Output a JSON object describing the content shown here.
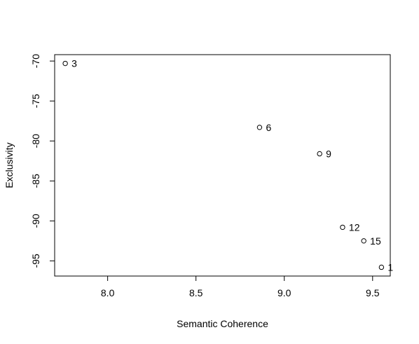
{
  "chart_data": {
    "type": "scatter",
    "title": "",
    "xlabel": "Semantic Coherence",
    "ylabel": "Exclusivity",
    "xlim": [
      7.7,
      9.6
    ],
    "ylim": [
      -96.9,
      -69.2
    ],
    "xticks": [
      8.0,
      8.5,
      9.0,
      9.5
    ],
    "xtick_labels": [
      "8.0",
      "8.5",
      "9.0",
      "9.5"
    ],
    "yticks": [
      -70,
      -75,
      -80,
      -85,
      -90,
      -95
    ],
    "ytick_labels": [
      "-70",
      "-75",
      "-80",
      "-85",
      "-90",
      "-95"
    ],
    "grid": false,
    "legend": "none",
    "marker": "open-circle",
    "points": [
      {
        "label": "3",
        "x": 7.76,
        "y": -70.3
      },
      {
        "label": "6",
        "x": 8.86,
        "y": -78.3
      },
      {
        "label": "9",
        "x": 9.2,
        "y": -81.6
      },
      {
        "label": "12",
        "x": 9.33,
        "y": -90.8
      },
      {
        "label": "15",
        "x": 9.45,
        "y": -92.5
      },
      {
        "label": "1",
        "x": 9.55,
        "y": -95.8
      }
    ]
  }
}
